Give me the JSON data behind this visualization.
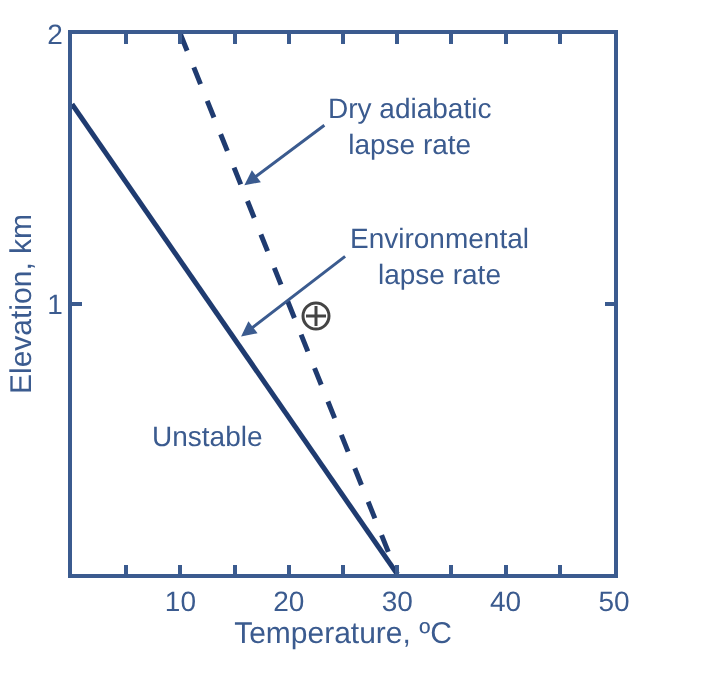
{
  "chart_data": {
    "type": "line",
    "xlabel": "Temperature, ºC",
    "ylabel": "Elevation, km",
    "xlim": [
      0,
      50
    ],
    "ylim": [
      0,
      2
    ],
    "xticks": [
      {
        "value": 5,
        "label": null
      },
      10,
      {
        "value": 15,
        "label": null
      },
      20,
      {
        "value": 25,
        "label": null
      },
      30,
      {
        "value": 35,
        "label": null
      },
      40,
      {
        "value": 45,
        "label": null
      },
      50
    ],
    "yticks": [
      {
        "value": 0,
        "label": null
      },
      1,
      2
    ],
    "series": [
      {
        "color": "#1f3b70",
        "line_style": "solid",
        "x": [
          0,
          30
        ],
        "values": [
          1.74,
          0
        ]
      },
      {
        "color": "#1f3b70",
        "line_style": "dashed",
        "x": [
          10,
          30
        ],
        "values": [
          2,
          0
        ]
      }
    ],
    "annotations": [
      {
        "text": "Dry adiabatic\nlapse rate",
        "x": 15.9,
        "y": 1.44
      },
      {
        "text": "Environmental\nlapse rate",
        "x": 15.6,
        "y": 0.88
      },
      "Unstable"
    ]
  }
}
